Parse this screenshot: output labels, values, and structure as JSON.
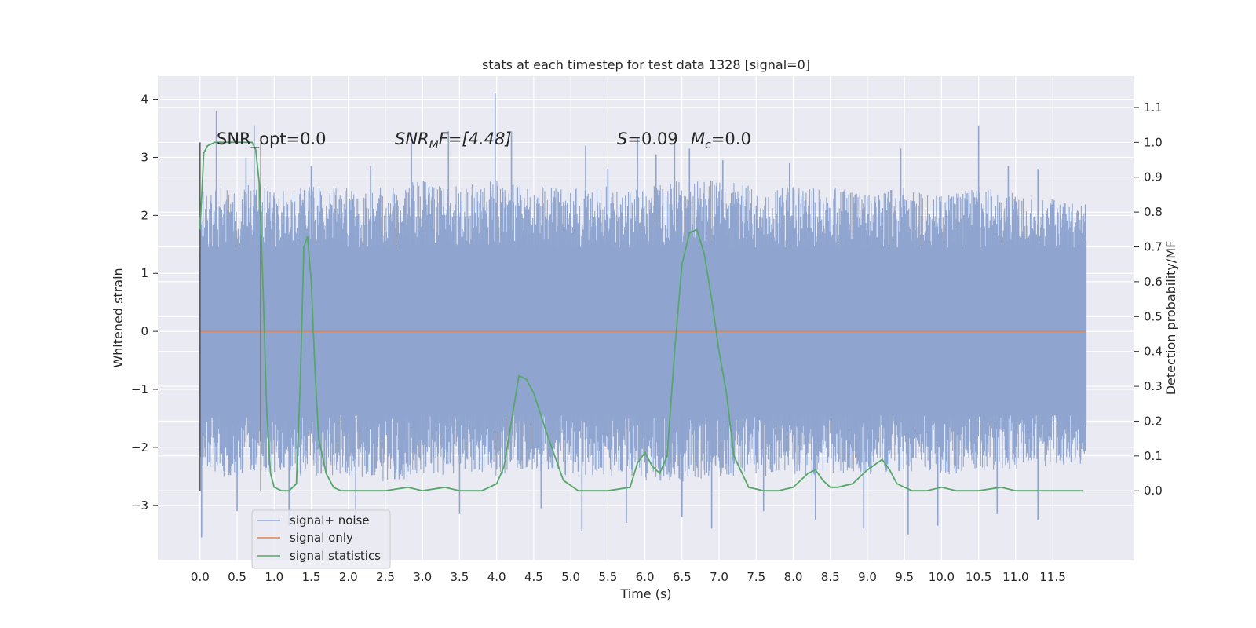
{
  "chart_data": {
    "type": "line",
    "title": "stats at each timestep for test data 1328 [signal=0]",
    "xlabel": "Time (s)",
    "ylabel": "Whitened strain",
    "y2label": "Detection probability/MF",
    "xlim": [
      -0.57,
      12.6
    ],
    "ylim": [
      -3.95,
      4.4
    ],
    "y2lim": [
      -0.2,
      1.19
    ],
    "xticks": [
      "0.0",
      "0.5",
      "1.0",
      "1.5",
      "2.0",
      "2.5",
      "3.0",
      "3.5",
      "4.0",
      "4.5",
      "5.0",
      "5.5",
      "6.0",
      "6.5",
      "7.0",
      "7.5",
      "8.0",
      "8.5",
      "9.0",
      "9.5",
      "10.0",
      "10.5",
      "11.0",
      "11.5"
    ],
    "yticks": [
      "4",
      "3",
      "2",
      "1",
      "0",
      "−1",
      "−2",
      "−3"
    ],
    "y2ticks": [
      "1.1",
      "1.0",
      "0.9",
      "0.8",
      "0.7",
      "0.6",
      "0.5",
      "0.4",
      "0.3",
      "0.2",
      "0.1",
      "0.0"
    ],
    "grid": true,
    "legend_position": "lower-left",
    "annotations": {
      "snr_opt": "SNR_opt=0.0",
      "snr_mf_a": "SNR",
      "snr_mf_sub": "M",
      "snr_mf_b": "F=[4.48]",
      "s_sym": "S",
      "s_val": "=0.09",
      "mc_sym": "M",
      "mc_sub": "c",
      "mc_val": "=0.0"
    },
    "markers": [
      0.0,
      0.82
    ],
    "series": [
      {
        "name": "signal+ noise",
        "color": "#8fa5cf",
        "envelope_x": [
          0.0,
          0.25,
          0.5,
          0.75,
          1.0,
          1.5,
          2.0,
          2.5,
          3.0,
          3.5,
          4.0,
          4.5,
          5.0,
          5.5,
          6.0,
          6.5,
          7.0,
          7.5,
          8.0,
          8.5,
          9.0,
          9.5,
          10.0,
          10.5,
          11.0,
          11.5,
          11.95
        ],
        "upper": [
          2.4,
          2.5,
          2.4,
          2.6,
          2.4,
          2.5,
          2.5,
          2.5,
          2.6,
          2.5,
          2.6,
          2.5,
          2.5,
          2.5,
          2.5,
          2.6,
          2.6,
          2.5,
          2.5,
          2.5,
          2.4,
          2.5,
          2.4,
          2.5,
          2.4,
          2.3,
          2.2
        ],
        "lower": [
          -2.4,
          -2.5,
          -2.6,
          -2.4,
          -2.5,
          -2.5,
          -2.5,
          -2.6,
          -2.5,
          -2.5,
          -2.5,
          -2.4,
          -2.5,
          -2.5,
          -2.6,
          -2.6,
          -2.5,
          -2.5,
          -2.5,
          -2.5,
          -2.5,
          -2.4,
          -2.5,
          -2.4,
          -2.4,
          -2.3,
          -2.3
        ],
        "peaks_x": [
          0.22,
          0.62,
          0.73,
          1.5,
          2.3,
          2.85,
          3.35,
          3.98,
          4.2,
          5.2,
          5.5,
          5.9,
          6.15,
          6.4,
          6.6,
          7.05,
          7.95,
          9.45,
          10.5,
          10.9,
          11.3
        ],
        "peaks_y": [
          3.8,
          3.0,
          3.55,
          2.85,
          2.85,
          3.4,
          3.45,
          4.1,
          3.45,
          3.2,
          2.8,
          3.35,
          3.05,
          3.25,
          3.15,
          2.95,
          2.9,
          3.15,
          3.55,
          2.85,
          2.8
        ],
        "troughs_x": [
          0.02,
          0.5,
          1.2,
          2.1,
          3.5,
          4.6,
          5.15,
          5.75,
          6.5,
          6.9,
          7.6,
          8.3,
          8.95,
          9.55,
          9.95,
          10.75,
          11.3
        ],
        "troughs_y": [
          -3.55,
          -3.1,
          -3.35,
          -3.2,
          -3.15,
          -3.05,
          -3.45,
          -3.3,
          -3.2,
          -3.4,
          -3.1,
          -3.25,
          -3.4,
          -3.5,
          -3.35,
          -3.15,
          -3.25
        ]
      },
      {
        "name": "signal only",
        "color": "#dd8452",
        "x": [
          0.0,
          11.95
        ],
        "y": [
          0.0,
          0.0
        ]
      },
      {
        "name": "signal statistics",
        "color": "#55a868",
        "axis": "right",
        "x": [
          0.0,
          0.05,
          0.1,
          0.2,
          0.3,
          0.5,
          0.7,
          0.75,
          0.8,
          0.85,
          0.9,
          0.95,
          1.0,
          1.1,
          1.2,
          1.3,
          1.35,
          1.4,
          1.45,
          1.5,
          1.55,
          1.6,
          1.7,
          1.8,
          1.9,
          2.0,
          2.2,
          2.5,
          2.8,
          3.0,
          3.3,
          3.5,
          3.8,
          4.0,
          4.1,
          4.2,
          4.3,
          4.4,
          4.5,
          4.7,
          4.9,
          5.1,
          5.5,
          5.8,
          5.9,
          6.0,
          6.1,
          6.2,
          6.3,
          6.4,
          6.5,
          6.6,
          6.7,
          6.8,
          6.9,
          7.0,
          7.1,
          7.2,
          7.4,
          7.6,
          7.8,
          8.0,
          8.2,
          8.3,
          8.4,
          8.5,
          8.6,
          8.8,
          9.0,
          9.2,
          9.3,
          9.4,
          9.6,
          9.8,
          10.0,
          10.2,
          10.5,
          10.8,
          11.0,
          11.3,
          11.5,
          11.9
        ],
        "y": [
          0.75,
          0.97,
          0.99,
          1.0,
          1.0,
          1.0,
          1.0,
          0.98,
          0.88,
          0.58,
          0.22,
          0.05,
          0.01,
          0.0,
          0.0,
          0.02,
          0.3,
          0.7,
          0.73,
          0.6,
          0.35,
          0.15,
          0.05,
          0.01,
          0.0,
          0.0,
          0.0,
          0.0,
          0.01,
          0.0,
          0.01,
          0.0,
          0.0,
          0.02,
          0.07,
          0.2,
          0.33,
          0.32,
          0.28,
          0.15,
          0.03,
          0.0,
          0.0,
          0.01,
          0.08,
          0.11,
          0.07,
          0.05,
          0.1,
          0.4,
          0.65,
          0.74,
          0.75,
          0.68,
          0.55,
          0.4,
          0.28,
          0.1,
          0.01,
          0.0,
          0.0,
          0.01,
          0.05,
          0.06,
          0.03,
          0.01,
          0.01,
          0.02,
          0.06,
          0.09,
          0.06,
          0.02,
          0.0,
          0.0,
          0.01,
          0.0,
          0.0,
          0.01,
          0.0,
          0.0,
          0.0,
          0.0
        ]
      }
    ]
  }
}
